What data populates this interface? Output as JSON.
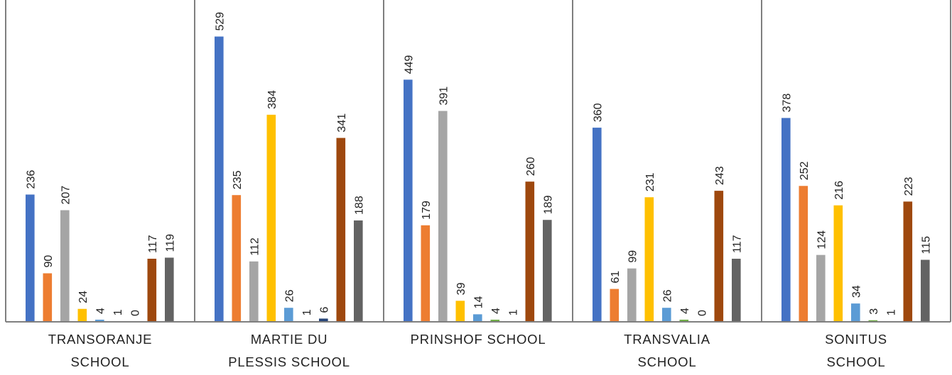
{
  "chart_data": {
    "type": "bar",
    "categories": [
      [
        "TRANSORANJE",
        "SCHOOL"
      ],
      [
        "MARTIE DU",
        "PLESSIS SCHOOL"
      ],
      [
        "PRINSHOF SCHOOL"
      ],
      [
        "TRANSVALIA",
        "SCHOOL"
      ],
      [
        "SONITUS",
        "SCHOOL"
      ]
    ],
    "series": [
      {
        "color": "#4472C4",
        "values": [
          236,
          529,
          449,
          360,
          378
        ]
      },
      {
        "color": "#ED7D31",
        "values": [
          90,
          235,
          179,
          61,
          252
        ]
      },
      {
        "color": "#A5A5A5",
        "values": [
          207,
          112,
          391,
          99,
          124
        ]
      },
      {
        "color": "#FFC000",
        "values": [
          24,
          384,
          39,
          231,
          216
        ]
      },
      {
        "color": "#5B9BD5",
        "values": [
          4,
          26,
          14,
          26,
          34
        ]
      },
      {
        "color": "#70AD47",
        "values": [
          1,
          1,
          4,
          4,
          3
        ]
      },
      {
        "color": "#264478",
        "values": [
          0,
          6,
          1,
          0,
          1
        ]
      },
      {
        "color": "#9E480E",
        "values": [
          117,
          341,
          260,
          243,
          223
        ]
      },
      {
        "color": "#636363",
        "values": [
          119,
          188,
          189,
          117,
          115
        ]
      }
    ],
    "ylim": [
      0,
      560
    ],
    "grid": false,
    "data_labels": true,
    "axis_color": "#7f7f7f",
    "label_color": "#222222"
  }
}
